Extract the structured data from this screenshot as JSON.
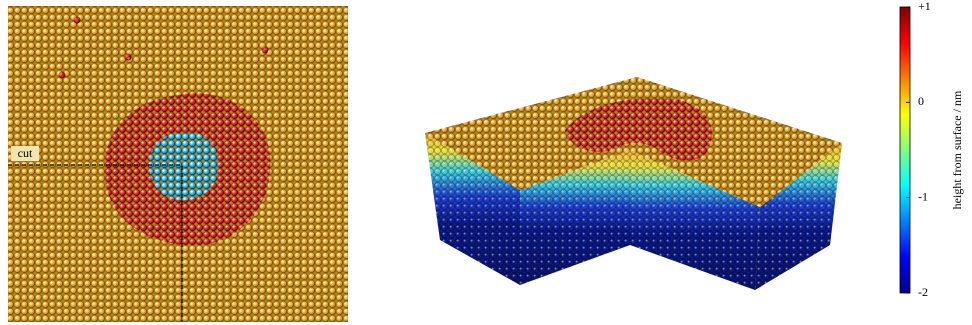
{
  "panel_left": {
    "label": "cut"
  },
  "colorbar": {
    "label": "height from surface / nm",
    "lim": [
      -2,
      1
    ],
    "ticks": [
      {
        "value": 1,
        "label": "+1"
      },
      0,
      -1,
      -2
    ]
  }
}
